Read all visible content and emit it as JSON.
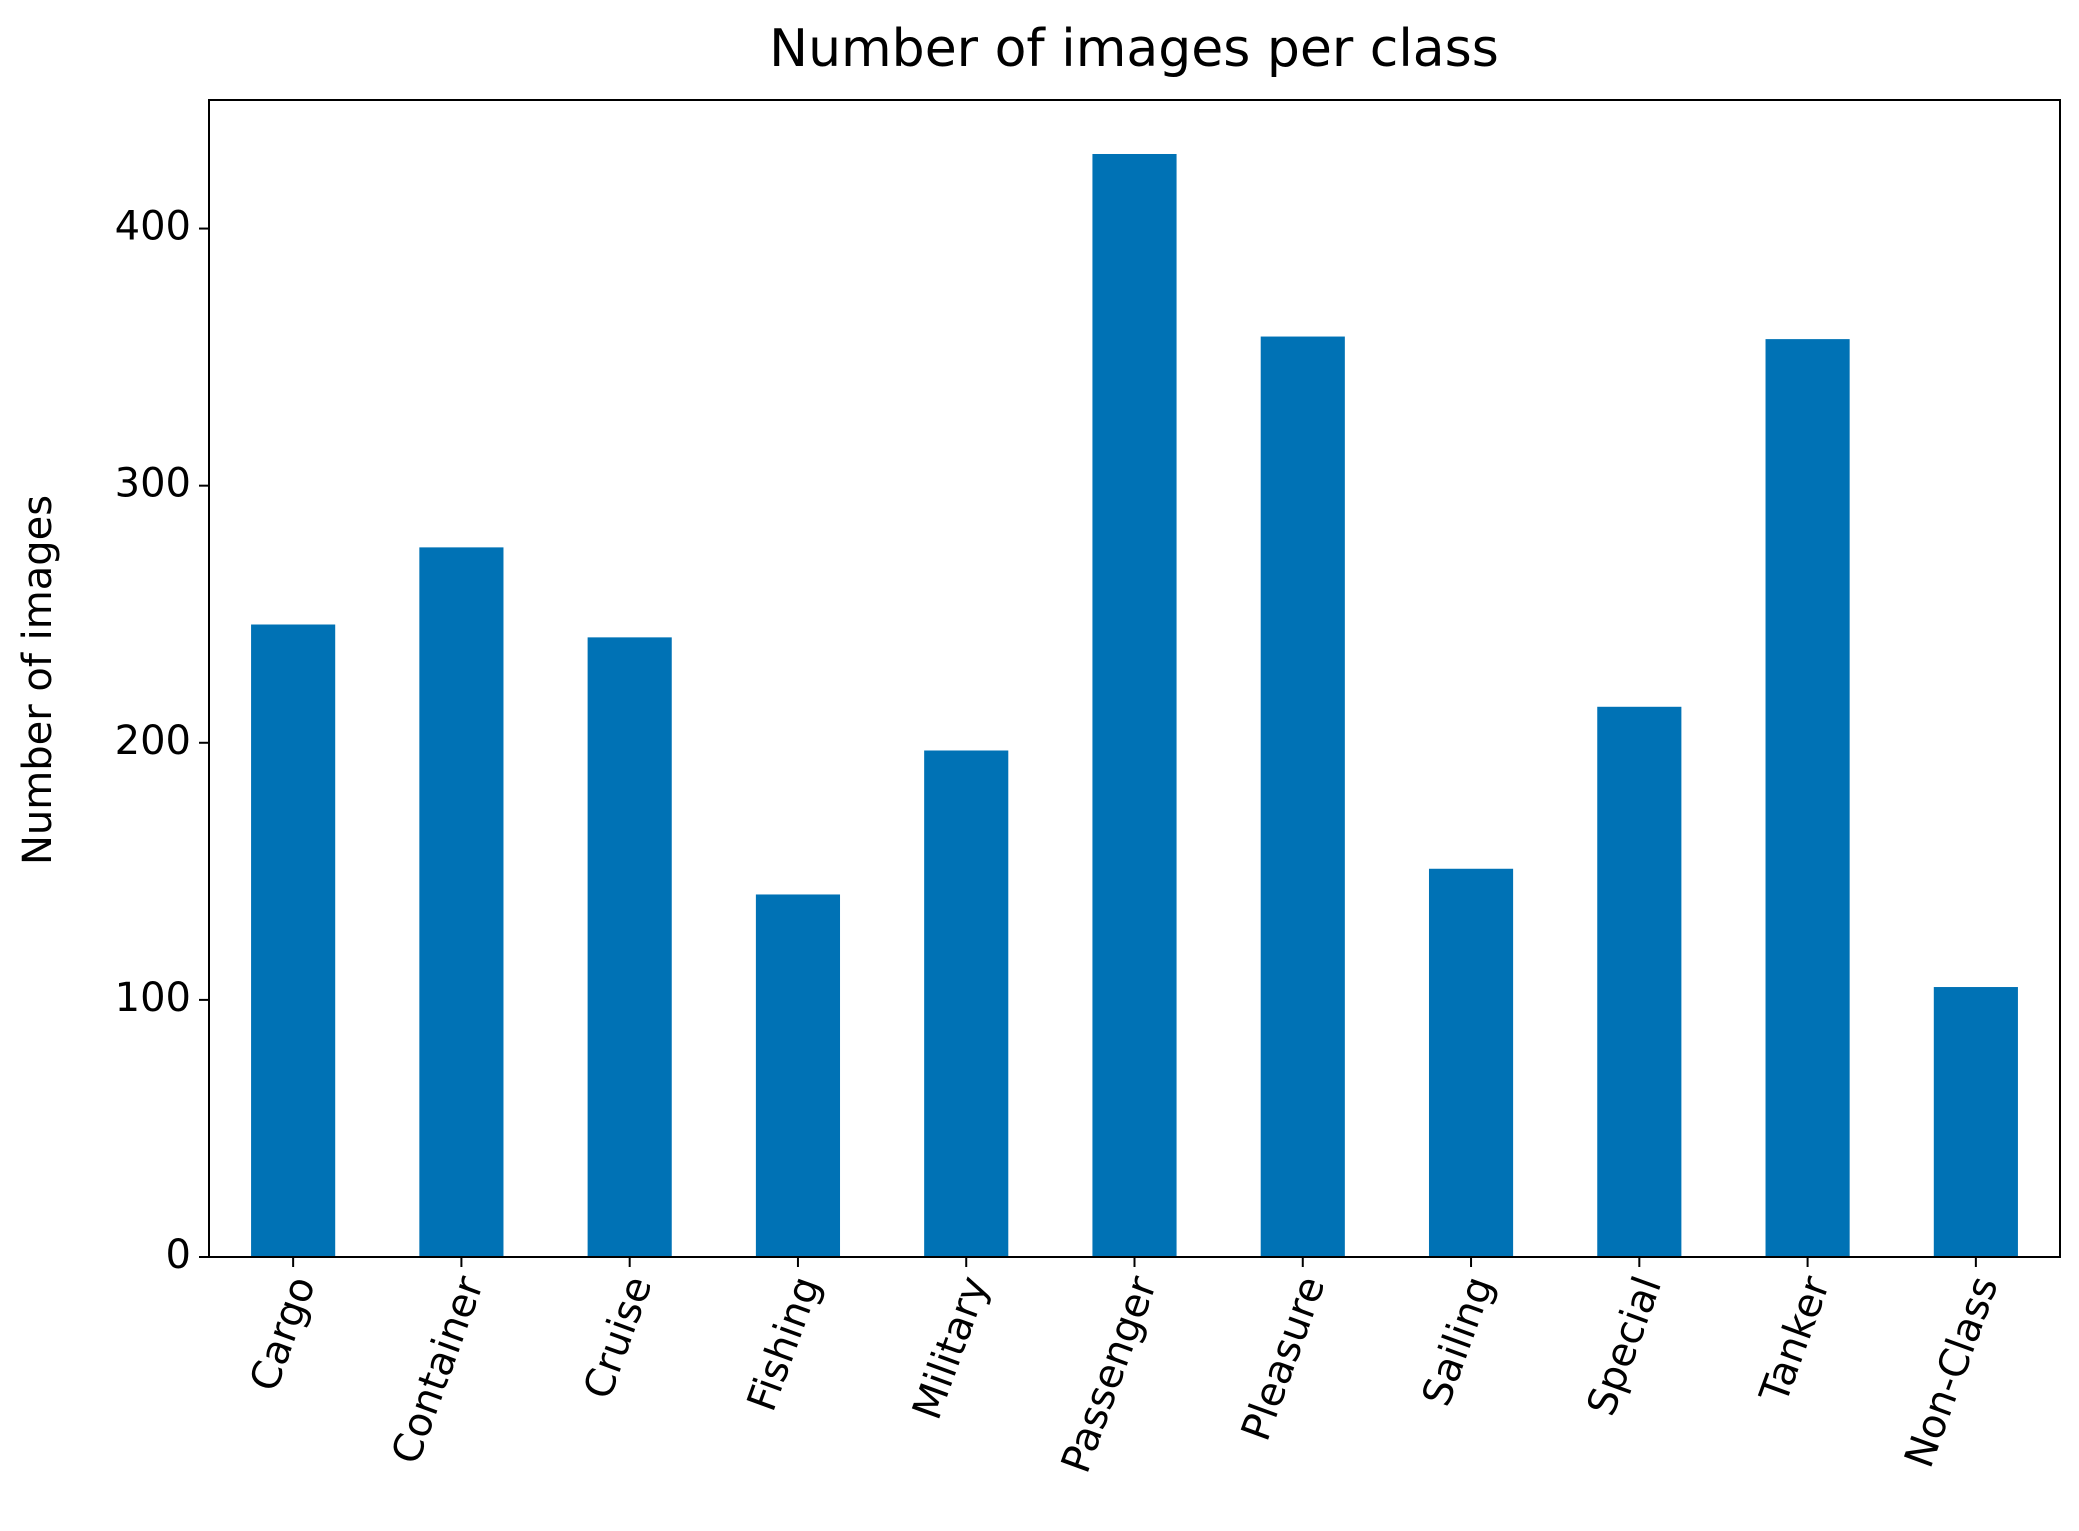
{
  "chart_data": {
    "type": "bar",
    "title": "Number of images per class",
    "y_label": "Number of images",
    "categories": [
      "Cargo",
      "Container",
      "Cruise",
      "Fishing",
      "Military",
      "Passenger",
      "Pleasure",
      "Sailing",
      "Special",
      "Tanker",
      "Non-Class"
    ],
    "values": [
      246,
      276,
      241,
      141,
      197,
      429,
      358,
      151,
      214,
      357,
      105
    ],
    "color": "#0072b5",
    "ylim": [
      0,
      450
    ],
    "yticks": [
      0,
      100,
      200,
      300,
      400
    ],
    "grid": false
  }
}
